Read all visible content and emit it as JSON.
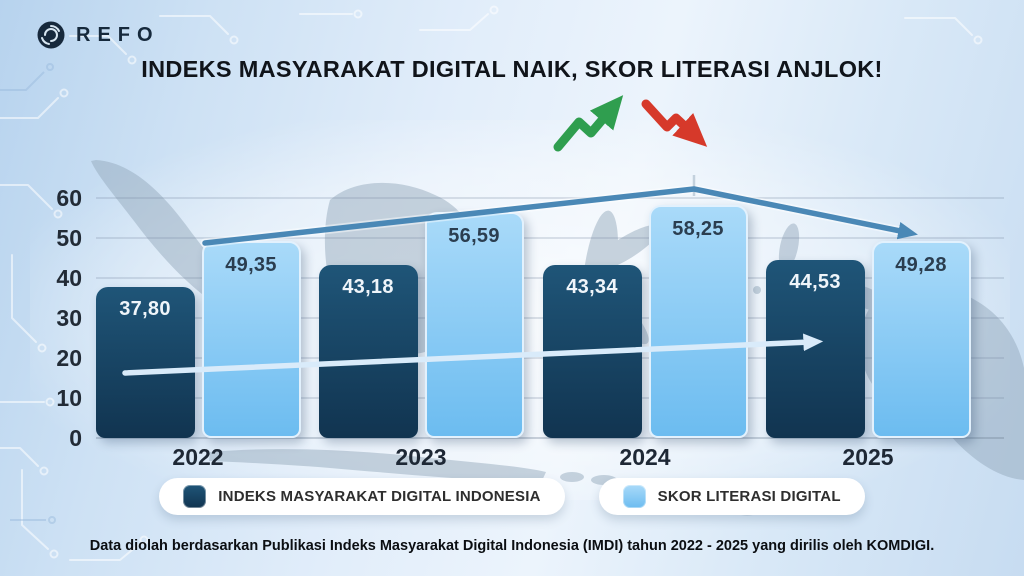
{
  "brand": {
    "name": "REFO"
  },
  "chart_data": {
    "type": "bar",
    "title": "INDEKS MASYARAKAT DIGITAL NAIK, SKOR LITERASI ANJLOK!",
    "categories": [
      "2022",
      "2023",
      "2024",
      "2025"
    ],
    "series": [
      {
        "name": "INDEKS MASYARAKAT DIGITAL INDONESIA",
        "values": [
          37.8,
          43.18,
          43.34,
          44.53
        ],
        "labels": [
          "37,80",
          "43,18",
          "43,34",
          "44,53"
        ],
        "color_top": "#1f5578",
        "color_bottom": "#113450",
        "label_color": "#eff5fa"
      },
      {
        "name": "SKOR LITERASI DIGITAL",
        "values": [
          49.35,
          56.59,
          58.25,
          49.28
        ],
        "labels": [
          "49,35",
          "56,59",
          "58,25",
          "49,28"
        ],
        "color_top": "#a9daf9",
        "color_bottom": "#6cbcf0",
        "border_color": "#e2f1fd",
        "label_color": "#2b3e50"
      }
    ],
    "ylim": [
      0,
      60
    ],
    "yticks": [
      0,
      10,
      20,
      30,
      40,
      50,
      60
    ],
    "grid": true,
    "legend_position": "bottom",
    "trend_arrows": [
      {
        "series": "INDEKS MASYARAKAT DIGITAL INDONESIA",
        "color": "#d9ebfa",
        "description": "gradual rise across the dark IMDI bars 2022-2025"
      },
      {
        "series": "SKOR LITERASI DIGITAL",
        "color": "#4a88b6",
        "description": "rises over the literacy bars, peaks above 2024, then falls sharply toward 2025"
      }
    ]
  },
  "title_icons": {
    "up": {
      "color": "#2f9e4f"
    },
    "down": {
      "color": "#d6392a"
    }
  },
  "source_note": "Data diolah berdasarkan Publikasi Indeks Masyarakat Digital Indonesia (IMDI) tahun 2022 - 2025 yang dirilis oleh KOMDIGI."
}
